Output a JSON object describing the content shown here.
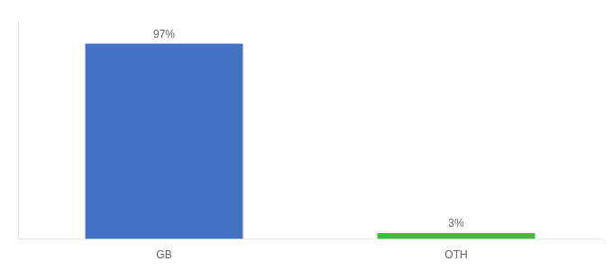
{
  "chart_data": {
    "type": "bar",
    "categories": [
      "GB",
      "OTH"
    ],
    "values": [
      97,
      3
    ],
    "value_labels": [
      "97%",
      "3%"
    ],
    "colors": [
      "#4472c4",
      "#3dbb3d"
    ],
    "ylim": [
      0,
      108
    ],
    "data_labels": true,
    "tick_labels": "x",
    "grid": false
  }
}
